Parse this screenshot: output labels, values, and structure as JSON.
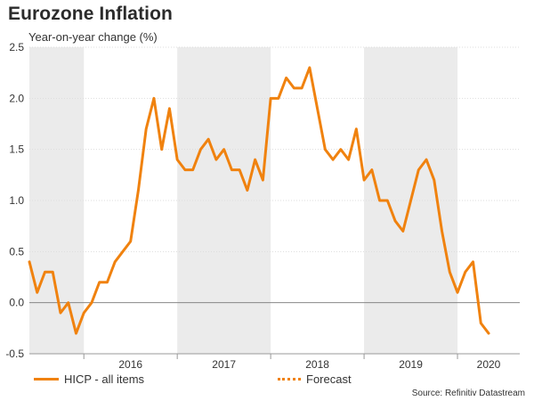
{
  "header": {
    "title": "Eurozone Inflation",
    "subtitle": "Year-on-year change (%)"
  },
  "legend": {
    "series_label": "HICP - all items",
    "forecast_label": "Forecast"
  },
  "source": "Source: Refinitiv Datastream",
  "colors": {
    "series": "#f0820f",
    "shade": "#ebebeb",
    "grid": "#dddddd",
    "zero": "#888888"
  },
  "chart_data": {
    "type": "line",
    "title": "Eurozone Inflation",
    "subtitle": "Year-on-year change (%)",
    "xlabel": "",
    "ylabel": "",
    "ylim": [
      -0.5,
      2.5
    ],
    "yticks": [
      "2.5",
      "2.0",
      "1.5",
      "1.0",
      "0.5",
      "0.0",
      "-0.5"
    ],
    "ytick_values": [
      2.5,
      2.0,
      1.5,
      1.0,
      0.5,
      0.0,
      -0.5
    ],
    "xticks": [
      "2016",
      "2017",
      "2018",
      "2019",
      "2020"
    ],
    "x_start": "2015-06",
    "x_end": "2020-09",
    "shaded_years": [
      2015,
      2017,
      2019
    ],
    "grid": true,
    "legend_position": "bottom",
    "series": [
      {
        "name": "HICP - all items",
        "start": "2015-06",
        "frequency": "monthly",
        "values": [
          0.4,
          0.1,
          0.3,
          0.3,
          -0.1,
          0.0,
          -0.3,
          -0.1,
          0.0,
          0.2,
          0.2,
          0.4,
          0.5,
          0.6,
          1.1,
          1.7,
          2.0,
          1.5,
          1.9,
          1.4,
          1.3,
          1.3,
          1.5,
          1.6,
          1.4,
          1.5,
          1.3,
          1.3,
          1.1,
          1.4,
          1.2,
          2.0,
          2.0,
          2.2,
          2.1,
          2.1,
          2.3,
          1.9,
          1.5,
          1.4,
          1.5,
          1.4,
          1.7,
          1.2,
          1.3,
          1.0,
          1.0,
          0.8,
          0.7,
          1.0,
          1.3,
          1.4,
          1.2,
          0.7,
          0.3,
          0.1,
          0.3,
          0.4,
          -0.2,
          -0.3
        ]
      },
      {
        "name": "Forecast",
        "values": []
      }
    ]
  }
}
